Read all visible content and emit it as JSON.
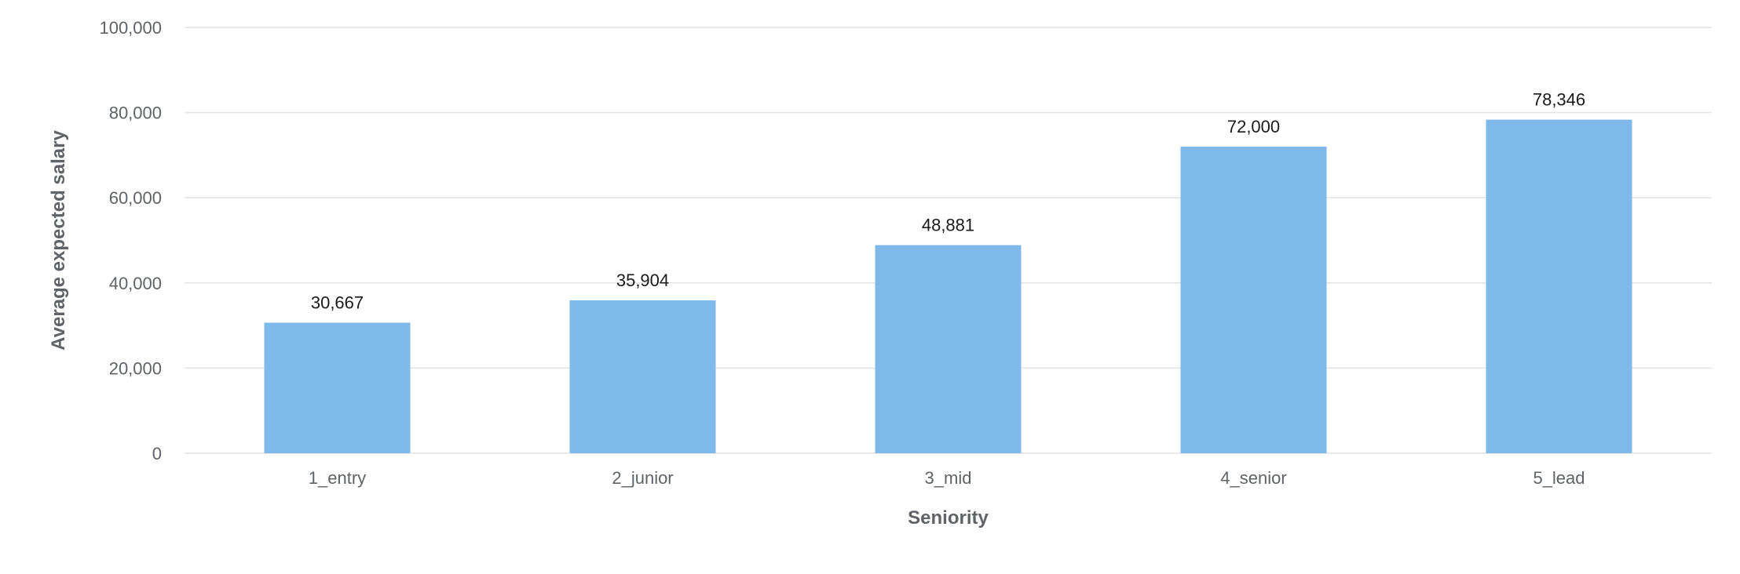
{
  "chart_data": {
    "type": "bar",
    "categories": [
      "1_entry",
      "2_junior",
      "3_mid",
      "4_senior",
      "5_lead"
    ],
    "values": [
      30667,
      35904,
      48881,
      72000,
      78346
    ],
    "value_labels": [
      "30,667",
      "35,904",
      "48,881",
      "72,000",
      "78,346"
    ],
    "title": "",
    "xlabel": "Seniority",
    "ylabel": "Average expected salary",
    "ylim": [
      0,
      100000
    ],
    "yticks": [
      0,
      20000,
      40000,
      60000,
      80000,
      100000
    ],
    "ytick_labels": [
      "0",
      "20,000",
      "40,000",
      "60,000",
      "80,000",
      "100,000"
    ],
    "grid": true,
    "legend": "none",
    "bar_color": "#7fb9ea"
  }
}
